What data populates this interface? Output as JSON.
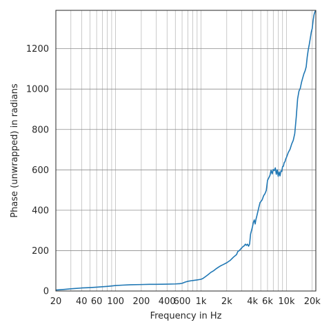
{
  "chart_data": {
    "type": "line",
    "title": "",
    "xlabel": "Frequency in Hz",
    "ylabel": "Phase (unwrapped) in radians",
    "xscale": "log",
    "xlim": [
      20,
      22050
    ],
    "ylim": [
      0,
      1390
    ],
    "grid": true,
    "x_ticks": [
      {
        "value": 20,
        "label": "20"
      },
      {
        "value": 40,
        "label": "40"
      },
      {
        "value": 60,
        "label": "60"
      },
      {
        "value": 100,
        "label": "100"
      },
      {
        "value": 200,
        "label": "200"
      },
      {
        "value": 400,
        "label": "400"
      },
      {
        "value": 600,
        "label": "600"
      },
      {
        "value": 1000,
        "label": "1k"
      },
      {
        "value": 2000,
        "label": "2k"
      },
      {
        "value": 4000,
        "label": "4k"
      },
      {
        "value": 6000,
        "label": "6k"
      },
      {
        "value": 10000,
        "label": "10k"
      },
      {
        "value": 20000,
        "label": "20k"
      }
    ],
    "x_grid": [
      20,
      30,
      40,
      50,
      60,
      70,
      80,
      90,
      100,
      200,
      300,
      400,
      500,
      600,
      700,
      800,
      900,
      1000,
      2000,
      3000,
      4000,
      5000,
      6000,
      7000,
      8000,
      9000,
      10000,
      20000
    ],
    "y_ticks": [
      {
        "value": 0,
        "label": "0"
      },
      {
        "value": 200,
        "label": "200"
      },
      {
        "value": 400,
        "label": "400"
      },
      {
        "value": 600,
        "label": "600"
      },
      {
        "value": 800,
        "label": "800"
      },
      {
        "value": 1000,
        "label": "1000"
      },
      {
        "value": 1200,
        "label": "1200"
      }
    ],
    "series": [
      {
        "color": "#1f77b4",
        "x": [
          20,
          25,
          30,
          35,
          40,
          45,
          50,
          60,
          70,
          80,
          90,
          100,
          120,
          150,
          200,
          250,
          300,
          400,
          500,
          550,
          560,
          600,
          650,
          700,
          800,
          900,
          1000,
          1050,
          1100,
          1200,
          1300,
          1400,
          1500,
          1600,
          1700,
          1800,
          2000,
          2200,
          2400,
          2600,
          2700,
          2800,
          3000,
          3100,
          3200,
          3300,
          3400,
          3500,
          3600,
          3700,
          3800,
          3900,
          4000,
          4100,
          4200,
          4300,
          4400,
          4500,
          4700,
          4900,
          5000,
          5200,
          5400,
          5600,
          5800,
          6000,
          6200,
          6400,
          6600,
          6800,
          7000,
          7200,
          7400,
          7600,
          7800,
          8000,
          8200,
          8400,
          8600,
          8800,
          9000,
          9200,
          9400,
          9600,
          9800,
          10000,
          10500,
          11000,
          11500,
          12000,
          12500,
          13000,
          13500,
          14000,
          14500,
          15000,
          15500,
          16000,
          16500,
          17000,
          17500,
          18000,
          18500,
          19000,
          19500,
          20000,
          20500,
          21000,
          21500,
          22050
        ],
        "y": [
          5,
          8,
          11,
          13,
          15,
          16,
          17,
          19,
          21,
          23,
          25,
          27,
          29,
          31,
          32,
          33,
          33,
          34,
          35,
          36,
          36,
          38,
          44,
          48,
          52,
          55,
          58,
          62,
          68,
          80,
          92,
          100,
          110,
          118,
          125,
          130,
          140,
          152,
          168,
          180,
          196,
          200,
          214,
          220,
          224,
          232,
          226,
          232,
          222,
          232,
          282,
          300,
          318,
          340,
          352,
          332,
          356,
          372,
          406,
          438,
          442,
          452,
          472,
          482,
          498,
          548,
          560,
          572,
          598,
          580,
          602,
          596,
          610,
          578,
          600,
          568,
          590,
          570,
          594,
          592,
          616,
          618,
          636,
          640,
          654,
          662,
          686,
          702,
          728,
          746,
          780,
          860,
          952,
          990,
          1004,
          1034,
          1056,
          1076,
          1090,
          1110,
          1160,
          1196,
          1222,
          1252,
          1282,
          1300,
          1340,
          1368,
          1382,
          1390
        ]
      }
    ]
  }
}
